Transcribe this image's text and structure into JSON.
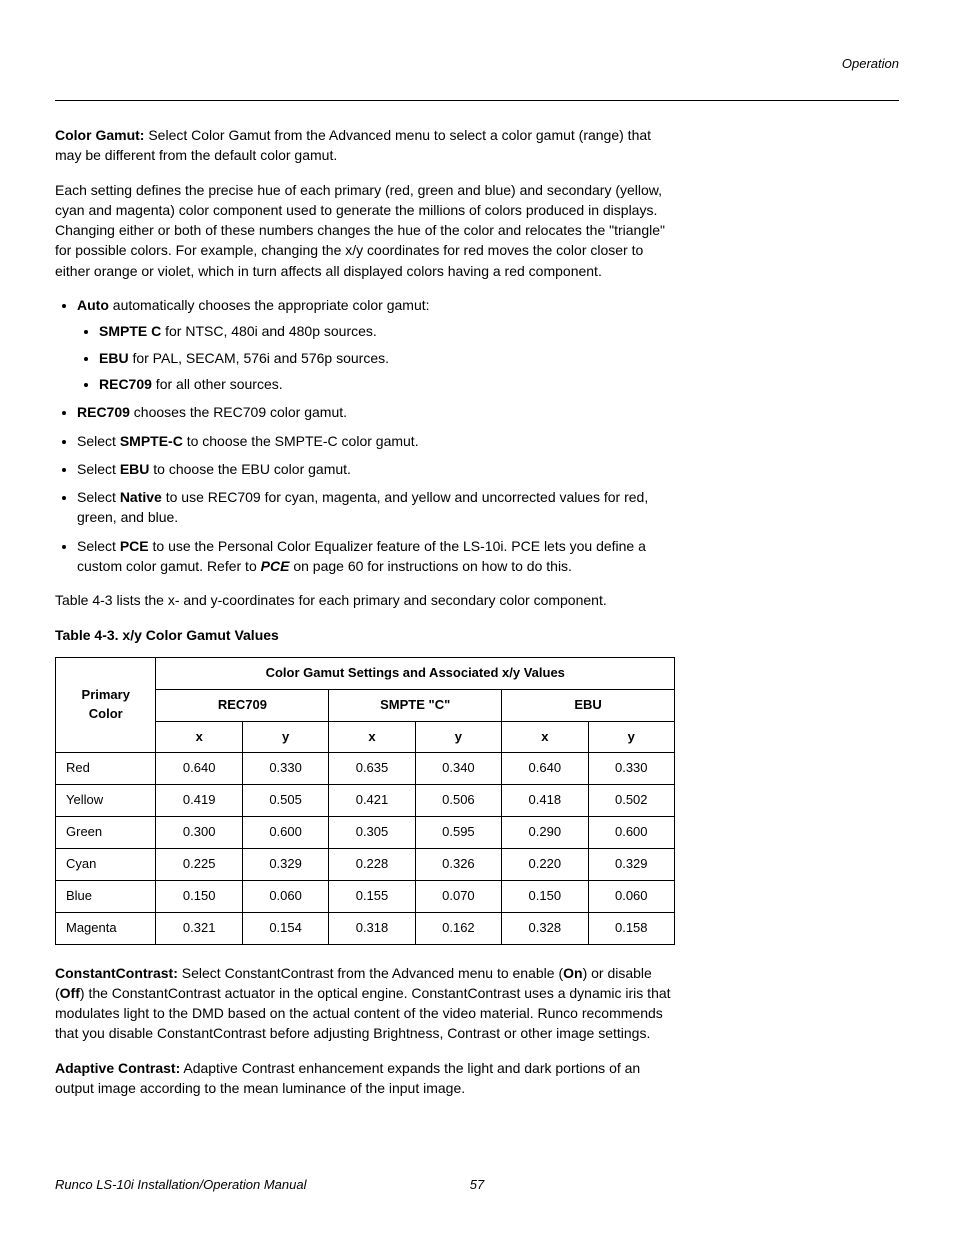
{
  "header": {
    "section": "Operation"
  },
  "colorGamut": {
    "title": "Color Gamut:",
    "intro1": " Select Color Gamut from the Advanced menu to select a color gamut (range) that may be different from the default color gamut.",
    "intro2": "Each setting defines the precise hue of each primary (red, green and blue) and secondary (yellow, cyan and magenta) color component used to generate the millions of colors produced in displays. Changing either or both of these numbers changes the hue of the color and relocates the \"triangle\" for possible colors. For example, changing the x/y coordinates for red moves the color closer to either orange or violet, which in turn affects all displayed colors having a red component.",
    "auto": {
      "label": "Auto",
      "text": " automatically chooses the appropriate color gamut:"
    },
    "autoItems": [
      {
        "label": "SMPTE C",
        "text": " for NTSC, 480i and 480p sources."
      },
      {
        "label": "EBU",
        "text": " for PAL, SECAM, 576i and 576p sources."
      },
      {
        "label": "REC709",
        "text": " for all other sources."
      }
    ],
    "rec709": {
      "label": "REC709",
      "text": " chooses the REC709 color gamut."
    },
    "smptec": {
      "pre": "Select ",
      "label": "SMPTE-C",
      "text": " to choose the SMPTE-C color gamut."
    },
    "ebu": {
      "pre": "Select ",
      "label": "EBU",
      "text": " to choose the EBU color gamut."
    },
    "native": {
      "pre": "Select ",
      "label": "Native",
      "text": " to use REC709 for cyan, magenta, and yellow and uncorrected values for red, green, and blue."
    },
    "pce": {
      "pre": "Select ",
      "label": "PCE",
      "text1": " to use the Personal Color Equalizer feature of the LS-10i. PCE lets you define a custom color gamut. Refer to ",
      "ref": "PCE",
      "text2": " on page 60 for instructions on how to do this."
    },
    "tableLead": "Table 4-3 lists the x- and y-coordinates for each primary and secondary color component.",
    "tableTitle": "Table 4-3. x/y Color Gamut Values"
  },
  "table": {
    "primaryColor": "Primary Color",
    "groupHead": "Color Gamut Settings and Associated x/y Values",
    "cols": [
      "REC709",
      "SMPTE \"C\"",
      "EBU"
    ],
    "xy": [
      "x",
      "y"
    ],
    "rows": [
      {
        "label": "Red",
        "vals": [
          "0.640",
          "0.330",
          "0.635",
          "0.340",
          "0.640",
          "0.330"
        ]
      },
      {
        "label": "Yellow",
        "vals": [
          "0.419",
          "0.505",
          "0.421",
          "0.506",
          "0.418",
          "0.502"
        ]
      },
      {
        "label": "Green",
        "vals": [
          "0.300",
          "0.600",
          "0.305",
          "0.595",
          "0.290",
          "0.600"
        ]
      },
      {
        "label": "Cyan",
        "vals": [
          "0.225",
          "0.329",
          "0.228",
          "0.326",
          "0.220",
          "0.329"
        ]
      },
      {
        "label": "Blue",
        "vals": [
          "0.150",
          "0.060",
          "0.155",
          "0.070",
          "0.150",
          "0.060"
        ]
      },
      {
        "label": "Magenta",
        "vals": [
          "0.321",
          "0.154",
          "0.318",
          "0.162",
          "0.328",
          "0.158"
        ]
      }
    ]
  },
  "constantContrast": {
    "title": "ConstantContrast:",
    "t1": " Select ConstantContrast from the Advanced menu to enable (",
    "on": "On",
    "t2": ") or disable (",
    "off": "Off",
    "t3": ") the ConstantContrast actuator in the optical engine. ConstantContrast uses a dynamic iris that modulates light to the DMD based on the actual content of the video material. Runco recommends that you disable ConstantContrast before adjusting Brightness, Contrast or other image settings."
  },
  "adaptiveContrast": {
    "title": "Adaptive Contrast:",
    "text": " Adaptive Contrast enhancement expands the light and dark portions of an output image according to the mean luminance of the input image."
  },
  "footer": {
    "manual": "Runco LS-10i Installation/Operation Manual",
    "page": "57"
  }
}
